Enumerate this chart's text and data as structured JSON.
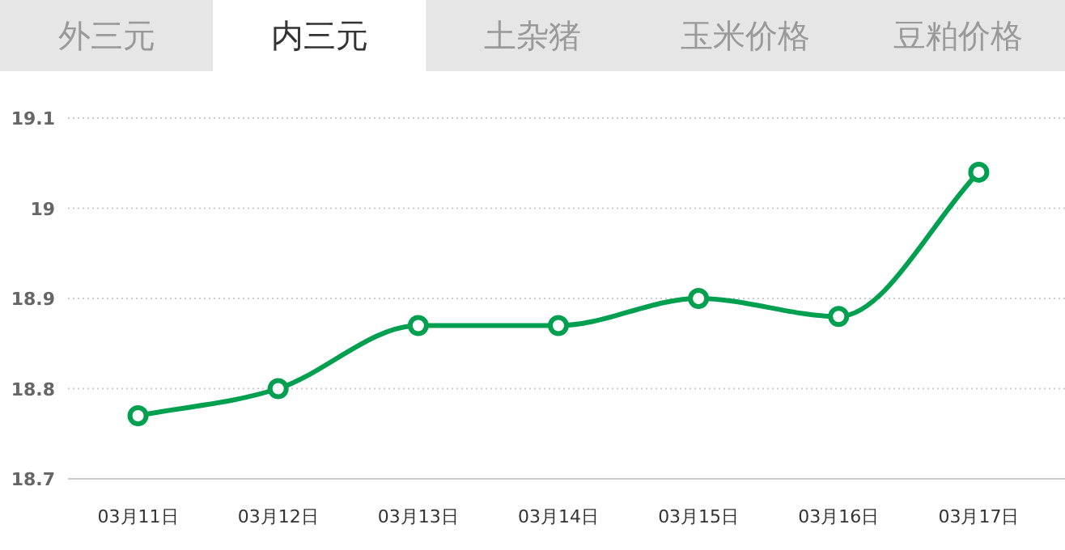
{
  "chart_data": {
    "type": "line",
    "title": "内三元",
    "annotations": [
      "外三元",
      "土杂猪",
      "玉米价格",
      "豆粕价格"
    ],
    "categories": [
      "03月11日",
      "03月12日",
      "03月13日",
      "03月14日",
      "03月15日",
      "03月16日",
      "03月17日"
    ],
    "series": [
      {
        "color": "#00a050",
        "values": [
          18.77,
          18.8,
          18.87,
          18.87,
          18.9,
          18.88,
          19.04
        ]
      }
    ],
    "ylim": [
      18.7,
      19.1
    ],
    "yticks": [
      18.7,
      18.8,
      18.9,
      19,
      19.1
    ],
    "grid": "y",
    "marker": "circle",
    "line_style": "solid"
  }
}
